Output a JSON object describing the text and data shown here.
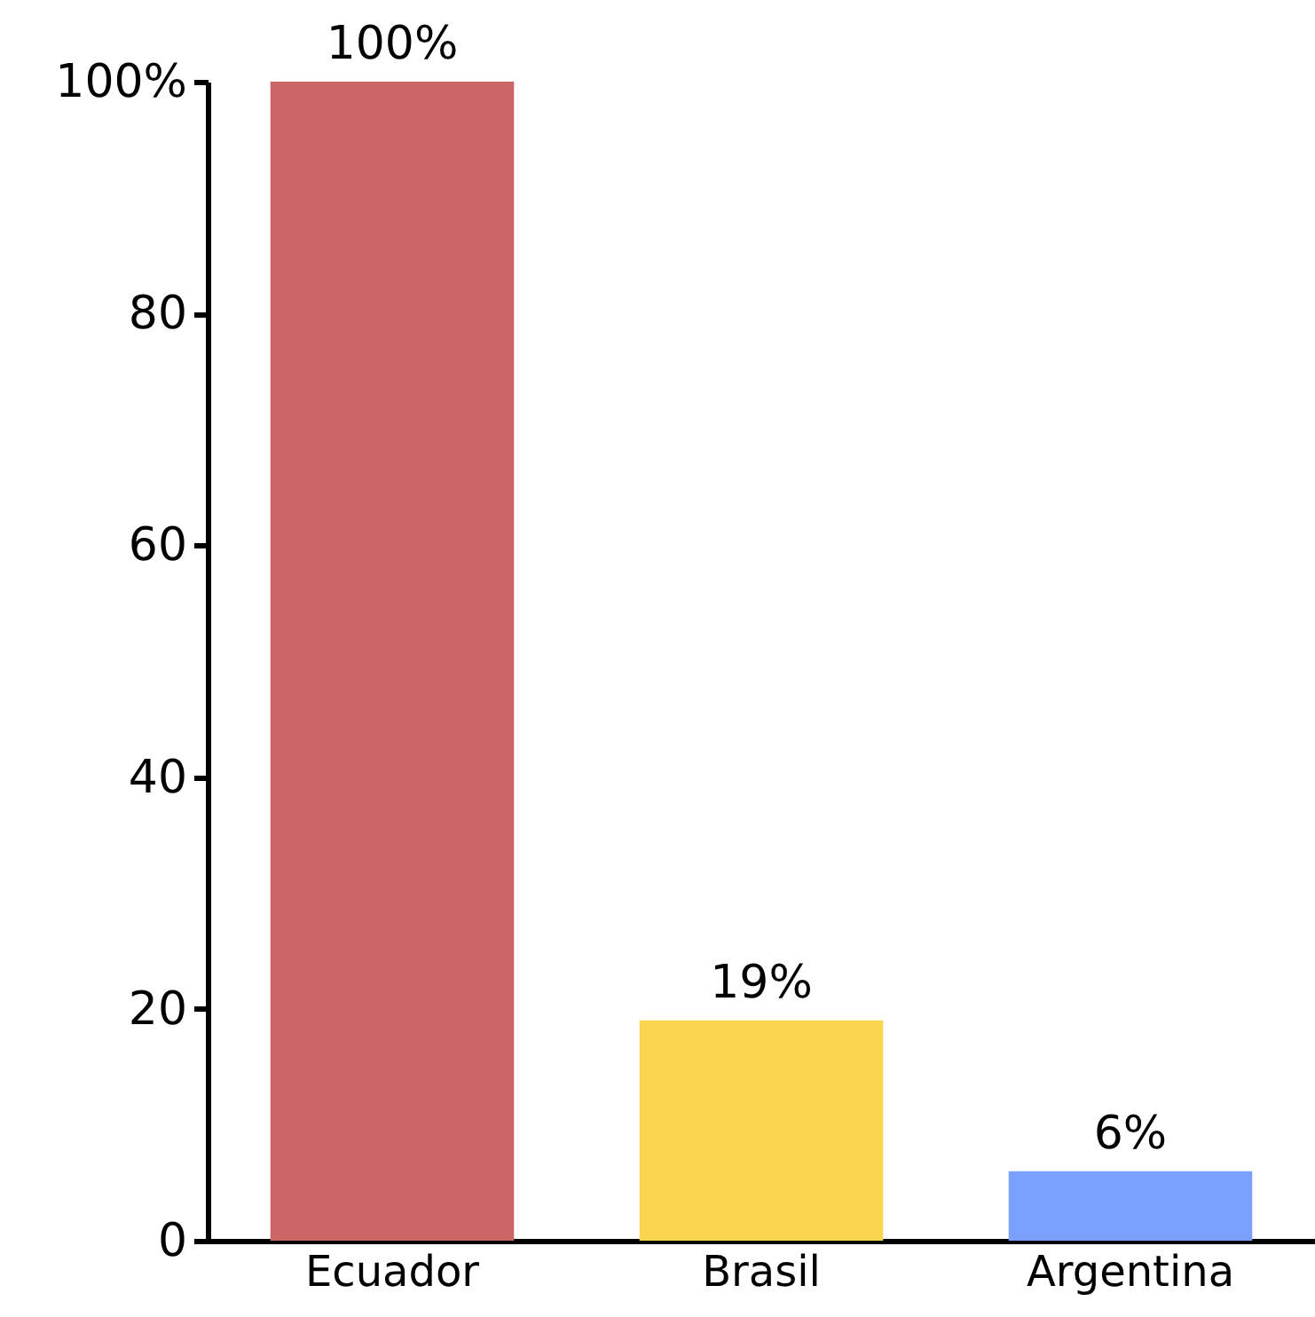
{
  "chart_data": {
    "type": "bar",
    "categories": [
      "Ecuador",
      "Brasil",
      "Argentina"
    ],
    "values": [
      100,
      19,
      6
    ],
    "colors": [
      "#cc6666",
      "#fbd54f",
      "#7aa0ff"
    ],
    "value_labels": [
      "100%",
      "19%",
      "6%"
    ],
    "ylim": [
      0,
      100
    ],
    "yticks": [
      0,
      20,
      40,
      60,
      80,
      {
        "value": 100,
        "label": "100%"
      }
    ],
    "grid": false
  }
}
